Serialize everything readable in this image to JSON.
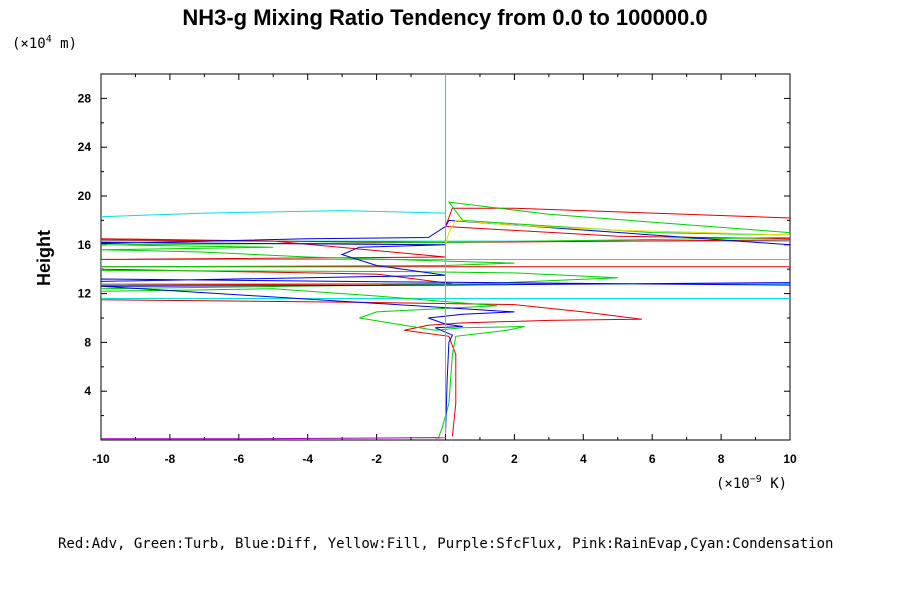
{
  "chart_data": {
    "type": "line",
    "title": "NH3-g Mixing Ratio Tendency from 0.0 to 100000.0",
    "xlabel": "",
    "ylabel": "Height",
    "y_units": {
      "prefix": "(×10",
      "exp": "4",
      "suffix": " m)"
    },
    "x_units": {
      "prefix": "(×10",
      "exp": "−9",
      "suffix": " K)"
    },
    "xlim": [
      -10,
      10
    ],
    "ylim": [
      0,
      30
    ],
    "x_ticks": [
      -10,
      -8,
      -6,
      -4,
      -2,
      0,
      2,
      4,
      6,
      8,
      10
    ],
    "y_ticks": [
      4,
      8,
      12,
      16,
      20,
      24,
      28
    ],
    "x_tick_labels": [
      "-10",
      "-8",
      "-6",
      "-4",
      "-2",
      "0",
      "2",
      "4",
      "6",
      "8",
      "10"
    ],
    "y_tick_labels": [
      "4",
      "8",
      "12",
      "16",
      "20",
      "24",
      "28"
    ],
    "grid": false,
    "legend_text": "Red:Adv, Green:Turb, Blue:Diff, Yellow:Fill, Purple:SfcFlux, Pink:RainEvap,Cyan:Condensation",
    "series": [
      {
        "name": "Adv",
        "color": "#e00000",
        "points": [
          [
            0.2,
            0.3
          ],
          [
            0.3,
            3
          ],
          [
            0.3,
            7
          ],
          [
            0.1,
            8.5
          ],
          [
            -1.2,
            9
          ],
          [
            -0.5,
            9.4
          ],
          [
            0.5,
            9.6
          ],
          [
            3,
            9.8
          ],
          [
            5.7,
            9.9
          ],
          [
            4,
            10.5
          ],
          [
            2,
            11.1
          ],
          [
            -3,
            11.3
          ],
          [
            -10,
            11.5
          ],
          [
            -10,
            12.7
          ],
          [
            0.2,
            12.8
          ],
          [
            -2,
            13.6
          ],
          [
            -10,
            14
          ],
          [
            -10,
            14.8
          ],
          [
            0,
            15
          ],
          [
            -5,
            16.3
          ],
          [
            -10,
            16.5
          ],
          [
            -10,
            16.4
          ],
          [
            0,
            16.2
          ],
          [
            10,
            16.4
          ],
          [
            10,
            16.5
          ],
          [
            5,
            16.7
          ],
          [
            0,
            17.5
          ],
          [
            0.2,
            19
          ],
          [
            2,
            19
          ],
          [
            10,
            18.2
          ]
        ]
      },
      {
        "name": "Turb",
        "color": "#00d000",
        "points": [
          [
            -0.2,
            0.2
          ],
          [
            -0.1,
            1
          ],
          [
            0.1,
            3
          ],
          [
            0.2,
            7
          ],
          [
            0.3,
            8.5
          ],
          [
            1.8,
            9
          ],
          [
            2.3,
            9.3
          ],
          [
            0.5,
            9.2
          ],
          [
            -0.3,
            9
          ],
          [
            -2.5,
            10
          ],
          [
            -2,
            10.5
          ],
          [
            1.5,
            11
          ],
          [
            -2,
            11.8
          ],
          [
            -5,
            12.4
          ],
          [
            -7,
            12.3
          ],
          [
            -10,
            12.2
          ],
          [
            -10,
            12.4
          ],
          [
            1,
            12.8
          ],
          [
            5,
            13.3
          ],
          [
            2,
            13.7
          ],
          [
            -1,
            13.8
          ],
          [
            -10,
            13.9
          ],
          [
            -10,
            14.2
          ],
          [
            0,
            14.3
          ],
          [
            2,
            14.5
          ],
          [
            -4,
            15
          ],
          [
            -7,
            15.4
          ],
          [
            -10,
            15.6
          ],
          [
            -5,
            15.8
          ],
          [
            -10,
            16
          ],
          [
            0,
            16.2
          ],
          [
            10,
            16.6
          ],
          [
            10,
            16.8
          ],
          [
            6,
            17
          ],
          [
            0.5,
            18
          ],
          [
            0.1,
            19.5
          ],
          [
            3,
            18.5
          ],
          [
            10,
            17
          ]
        ]
      },
      {
        "name": "Diff",
        "color": "#0000e0",
        "points": [
          [
            0,
            0.5
          ],
          [
            0.05,
            5
          ],
          [
            0.1,
            8
          ],
          [
            0.2,
            8.6
          ],
          [
            -0.3,
            9.2
          ],
          [
            0.5,
            9.3
          ],
          [
            0,
            9.5
          ],
          [
            -0.5,
            10
          ],
          [
            0.5,
            10.3
          ],
          [
            2,
            10.5
          ],
          [
            -10,
            12.6
          ],
          [
            0,
            12.7
          ],
          [
            10,
            12.9
          ],
          [
            10,
            12.7
          ],
          [
            -3,
            13
          ],
          [
            -10,
            13.2
          ],
          [
            -10,
            13
          ],
          [
            0,
            13.5
          ],
          [
            -2,
            14.3
          ],
          [
            -3,
            15.2
          ],
          [
            -2.5,
            15.8
          ],
          [
            0,
            16
          ],
          [
            -10,
            16.2
          ],
          [
            -10,
            16.1
          ],
          [
            -4,
            16.5
          ],
          [
            -0.5,
            16.6
          ],
          [
            0,
            17.5
          ],
          [
            0.1,
            18
          ],
          [
            10,
            16
          ],
          [
            10,
            15.9
          ]
        ]
      },
      {
        "name": "Fill",
        "color": "#e0e000",
        "points": [
          [
            0,
            14
          ],
          [
            0,
            16
          ],
          [
            0.1,
            17
          ],
          [
            0.3,
            18
          ],
          [
            2,
            17.6
          ],
          [
            5,
            17.2
          ],
          [
            10,
            16.8
          ]
        ]
      },
      {
        "name": "SfcFlux",
        "color": "#a000c0",
        "points": [
          [
            -10,
            0.1
          ],
          [
            -6,
            0.1
          ],
          [
            0,
            0.2
          ]
        ]
      },
      {
        "name": "RainEvap",
        "color": "#ff80c0",
        "points": [
          [
            -0.3,
            0.1
          ],
          [
            0,
            0.2
          ]
        ]
      },
      {
        "name": "Condensation",
        "color": "#00e0e0",
        "points": [
          [
            0,
            0.5
          ],
          [
            0,
            8
          ],
          [
            0,
            12
          ],
          [
            0,
            14
          ],
          [
            0,
            16
          ],
          [
            0,
            18
          ],
          [
            0,
            20
          ],
          [
            0,
            30
          ],
          [
            0,
            18.6
          ],
          [
            -3,
            18.8
          ],
          [
            -7,
            18.6
          ],
          [
            -10,
            18.3
          ]
        ]
      }
    ],
    "hlines": [
      {
        "color": "#00e0e0",
        "x": [
          -10,
          10
        ],
        "y": 14.8
      },
      {
        "color": "#00e0e0",
        "x": [
          -10,
          10
        ],
        "y": 12.8
      },
      {
        "color": "#00e0e0",
        "x": [
          -10,
          10
        ],
        "y": 11.6
      },
      {
        "color": "#00e0e0",
        "x": [
          -10,
          10
        ],
        "y": 16.3
      },
      {
        "color": "#e00000",
        "x": [
          -10,
          10
        ],
        "y": 14.2
      }
    ],
    "colors": {
      "frame": "#000000",
      "background": "#ffffff",
      "text": "#000000"
    }
  }
}
